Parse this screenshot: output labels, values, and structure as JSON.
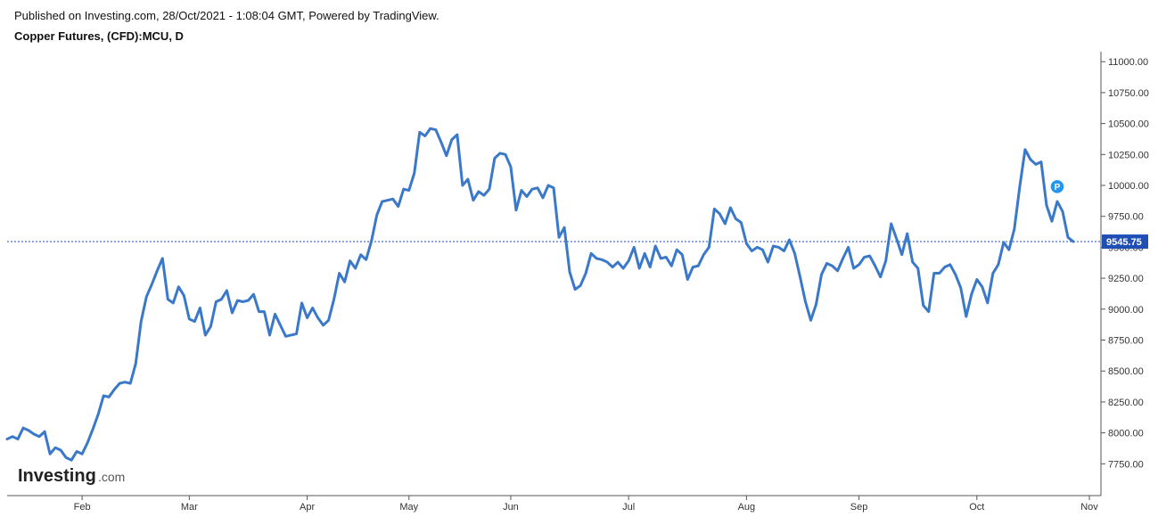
{
  "header": {
    "published": "Published on Investing.com, 28/Oct/2021 - 1:08:04 GMT, Powered by TradingView.",
    "instrument": "Copper Futures, (CFD):MCU, D"
  },
  "logo": {
    "brand": "Investing",
    "suffix": ".com"
  },
  "colors": {
    "line": "#3a78c9",
    "last_price_line": "#1f4fb5",
    "last_price_badge": "#1f4fb5",
    "marker": "#2196f3",
    "axis": "#555555"
  },
  "chart_data": {
    "type": "line",
    "title": "Copper Futures, (CFD):MCU, D",
    "ylim": [
      7580,
      11120
    ],
    "y_ticks": [
      "11000.00",
      "10750.00",
      "10500.00",
      "10250.00",
      "10000.00",
      "9750.00",
      "9500.00",
      "9250.00",
      "9000.00",
      "8750.00",
      "8500.00",
      "8250.00",
      "8000.00",
      "7750.00"
    ],
    "x_ticks": [
      {
        "label": "Feb",
        "index": 14
      },
      {
        "label": "Mar",
        "index": 34
      },
      {
        "label": "Apr",
        "index": 56
      },
      {
        "label": "May",
        "index": 75
      },
      {
        "label": "Jun",
        "index": 94
      },
      {
        "label": "Jul",
        "index": 116
      },
      {
        "label": "Aug",
        "index": 138
      },
      {
        "label": "Sep",
        "index": 159
      },
      {
        "label": "Oct",
        "index": 181
      },
      {
        "label": "Nov",
        "index": 202
      }
    ],
    "last_price": 9545.75,
    "last_price_label": "9545.75",
    "marker": {
      "label": "P",
      "index": 196,
      "value": 9990
    },
    "series": [
      {
        "values": [
          7950,
          7970,
          7950,
          8040,
          8020,
          7990,
          7970,
          8010,
          7830,
          7880,
          7860,
          7800,
          7780,
          7850,
          7830,
          7920,
          8030,
          8150,
          8300,
          8290,
          8350,
          8400,
          8410,
          8400,
          8560,
          8900,
          9100,
          9200,
          9310,
          9410,
          9080,
          9050,
          9180,
          9110,
          8920,
          8900,
          9010,
          8790,
          8860,
          9060,
          9080,
          9150,
          8970,
          9070,
          9060,
          9070,
          9120,
          8980,
          8980,
          8790,
          8960,
          8870,
          8780,
          8790,
          8800,
          9050,
          8930,
          9010,
          8930,
          8870,
          8910,
          9080,
          9290,
          9220,
          9390,
          9330,
          9440,
          9400,
          9550,
          9760,
          9870,
          9880,
          9890,
          9830,
          9970,
          9960,
          10100,
          10430,
          10400,
          10460,
          10450,
          10350,
          10240,
          10370,
          10410,
          10000,
          10050,
          9880,
          9950,
          9920,
          9970,
          10220,
          10260,
          10250,
          10150,
          9800,
          9960,
          9910,
          9970,
          9980,
          9900,
          10000,
          9980,
          9580,
          9660,
          9300,
          9160,
          9190,
          9290,
          9450,
          9410,
          9400,
          9380,
          9340,
          9380,
          9330,
          9390,
          9500,
          9330,
          9450,
          9340,
          9510,
          9410,
          9420,
          9350,
          9480,
          9440,
          9240,
          9340,
          9350,
          9440,
          9500,
          9810,
          9770,
          9690,
          9820,
          9730,
          9700,
          9530,
          9470,
          9500,
          9480,
          9380,
          9510,
          9500,
          9470,
          9560,
          9450,
          9260,
          9060,
          8910,
          9040,
          9280,
          9370,
          9350,
          9310,
          9410,
          9500,
          9330,
          9360,
          9420,
          9430,
          9350,
          9260,
          9390,
          9690,
          9570,
          9440,
          9610,
          9380,
          9330,
          9030,
          8980,
          9290,
          9290,
          9340,
          9360,
          9280,
          9170,
          8940,
          9120,
          9240,
          9180,
          9050,
          9290,
          9360,
          9540,
          9480,
          9650,
          9990,
          10290,
          10210,
          10170,
          10190,
          9840,
          9710,
          9870,
          9790,
          9580,
          9545.75
        ]
      }
    ]
  }
}
